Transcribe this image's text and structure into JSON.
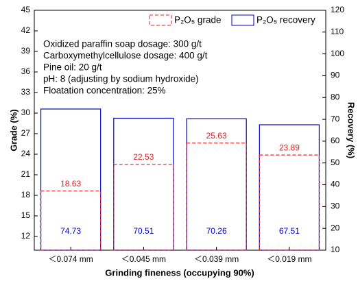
{
  "chart_data": {
    "type": "bar",
    "categories": [
      "＜0.074 mm",
      "＜0.045 mm",
      "＜0.039 mm",
      "＜0.019 mm"
    ],
    "x_label": "Grinding fineness (occupying 90%)",
    "y_label": "Grade (%)",
    "y2_label": "Recovery (%)",
    "ylim": [
      10,
      45
    ],
    "yticks": [
      12,
      15,
      18,
      21,
      24,
      27,
      30,
      33,
      36,
      39,
      42,
      45
    ],
    "y2lim": [
      10,
      120
    ],
    "y2ticks": [
      10,
      20,
      30,
      40,
      50,
      60,
      70,
      80,
      90,
      100,
      110,
      120
    ],
    "legend": "upper right",
    "annotation": [
      "Oxidized paraffin  soap dosage: 300 g/t",
      "Carboxymethylcellulose dosage: 400 g/t",
      "Pine oil: 20 g/t",
      "pH: 8 (adjusting by sodium hydroxide)",
      "Floatation concentration: 25%"
    ],
    "series": [
      {
        "name": "P₂O₅ recovery",
        "color": "#0000cc",
        "axis": "y2",
        "values": [
          74.73,
          70.51,
          70.26,
          67.51
        ]
      },
      {
        "name": "P₂O₅ grade",
        "color": "#e02020",
        "values": [
          18.63,
          22.53,
          25.63,
          23.89
        ]
      }
    ]
  }
}
